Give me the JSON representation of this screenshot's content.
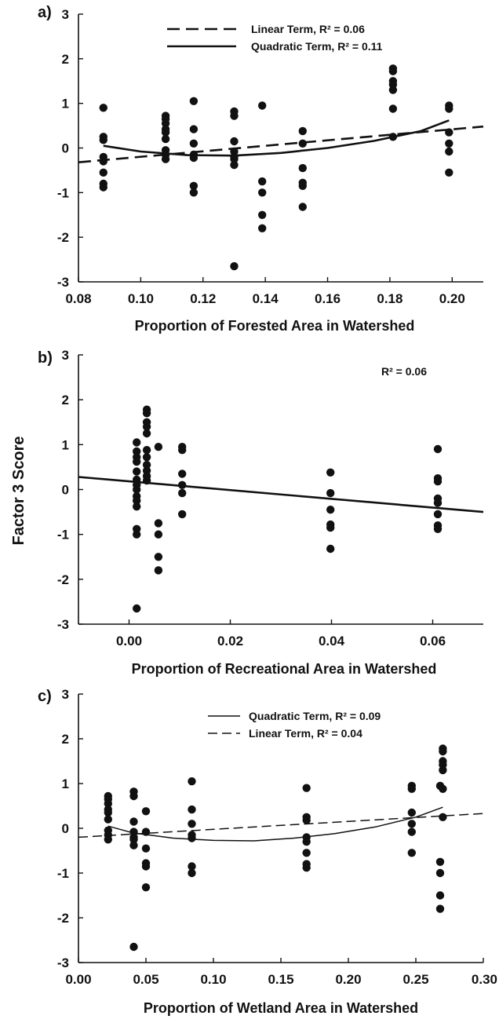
{
  "figure": {
    "ylabel": "Factor 3 Score"
  },
  "chart_data": [
    {
      "type": "scatter",
      "panel_label": "a)",
      "xlabel": "Proportion of Forested Area in Watershed",
      "xlim": [
        0.08,
        0.21
      ],
      "ylim": [
        -3,
        3
      ],
      "xticks": [
        "0.08",
        "0.10",
        "0.12",
        "0.14",
        "0.16",
        "0.18",
        "0.20"
      ],
      "yticks": [
        "-3",
        "-2",
        "-1",
        "0",
        "1",
        "2",
        "3"
      ],
      "legend": [
        {
          "label": "Linear Term, R² = 0.06",
          "style": "dashed"
        },
        {
          "label": "Quadratic Term, R² = 0.11",
          "style": "solid"
        }
      ],
      "annotation": "",
      "groups": [
        {
          "x": 0.088,
          "y": [
            0.9,
            0.25,
            0.18,
            -0.2,
            -0.3,
            -0.55,
            -0.8,
            -0.88
          ]
        },
        {
          "x": 0.108,
          "y": [
            0.72,
            0.65,
            0.55,
            0.42,
            0.35,
            0.2,
            -0.05,
            -0.15,
            -0.25
          ]
        },
        {
          "x": 0.117,
          "y": [
            1.05,
            0.42,
            0.1,
            -0.15,
            -0.22,
            -0.85,
            -1.0
          ]
        },
        {
          "x": 0.13,
          "y": [
            0.82,
            0.72,
            0.15,
            -0.08,
            -0.2,
            -0.25,
            -0.38,
            -2.65
          ]
        },
        {
          "x": 0.139,
          "y": [
            0.95,
            -0.75,
            -1.0,
            -1.5,
            -1.8
          ]
        },
        {
          "x": 0.152,
          "y": [
            0.38,
            0.1,
            -0.45,
            -0.78,
            -0.85,
            -1.32
          ]
        },
        {
          "x": 0.181,
          "y": [
            1.78,
            1.72,
            1.5,
            1.42,
            1.3,
            0.88,
            0.25
          ]
        },
        {
          "x": 0.199,
          "y": [
            0.95,
            0.88,
            0.35,
            0.1,
            -0.08,
            -0.55
          ]
        }
      ],
      "fits": [
        {
          "kind": "linear",
          "style": "dashed",
          "x": [
            0.08,
            0.21
          ],
          "y": [
            -0.32,
            0.48
          ]
        },
        {
          "kind": "quadratic",
          "style": "solid",
          "x": [
            0.088,
            0.1,
            0.115,
            0.13,
            0.145,
            0.16,
            0.175,
            0.19,
            0.199
          ],
          "y": [
            0.05,
            -0.08,
            -0.16,
            -0.17,
            -0.11,
            0.0,
            0.16,
            0.38,
            0.62
          ]
        }
      ]
    },
    {
      "type": "scatter",
      "panel_label": "b)",
      "xlabel": "Proportion of Recreational Area in Watershed",
      "xlim": [
        -0.01,
        0.07
      ],
      "ylim": [
        -3,
        3
      ],
      "xticks": [
        "0.00",
        "0.02",
        "0.04",
        "0.06"
      ],
      "yticks": [
        "-3",
        "-2",
        "-1",
        "0",
        "1",
        "2",
        "3"
      ],
      "legend": [],
      "annotation": "R² = 0.06",
      "groups": [
        {
          "x": 0.0015,
          "y": [
            1.05,
            0.85,
            0.72,
            0.62,
            0.4,
            0.22,
            0.1,
            0.0,
            -0.15,
            -0.25,
            -0.38,
            -0.88,
            -1.0,
            -2.65
          ]
        },
        {
          "x": 0.0035,
          "y": [
            1.78,
            1.7,
            1.5,
            1.4,
            1.25,
            0.88,
            0.72,
            0.55,
            0.42,
            0.3,
            0.2
          ]
        },
        {
          "x": 0.0058,
          "y": [
            0.95,
            -0.75,
            -1.0,
            -1.5,
            -1.8
          ]
        },
        {
          "x": 0.0105,
          "y": [
            0.95,
            0.88,
            0.35,
            0.1,
            -0.08,
            -0.55
          ]
        },
        {
          "x": 0.0398,
          "y": [
            0.38,
            -0.08,
            -0.45,
            -0.78,
            -0.85,
            -1.32
          ]
        },
        {
          "x": 0.061,
          "y": [
            0.9,
            0.25,
            0.18,
            -0.2,
            -0.3,
            -0.55,
            -0.8,
            -0.88
          ]
        }
      ],
      "fits": [
        {
          "kind": "linear",
          "style": "solid",
          "x": [
            -0.01,
            0.07
          ],
          "y": [
            0.28,
            -0.5
          ]
        }
      ]
    },
    {
      "type": "scatter",
      "panel_label": "c)",
      "xlabel": "Proportion of Wetland Area in Watershed",
      "xlim": [
        0.0,
        0.3
      ],
      "ylim": [
        -3,
        3
      ],
      "xticks": [
        "0.00",
        "0.05",
        "0.10",
        "0.15",
        "0.20",
        "0.25",
        "0.30"
      ],
      "yticks": [
        "-3",
        "-2",
        "-1",
        "0",
        "1",
        "2",
        "3"
      ],
      "legend": [
        {
          "label": "Quadratic Term, R² = 0.09",
          "style": "solid"
        },
        {
          "label": "Linear Term, R² = 0.04",
          "style": "dashed"
        }
      ],
      "annotation": "",
      "groups": [
        {
          "x": 0.022,
          "y": [
            0.72,
            0.65,
            0.55,
            0.42,
            0.35,
            0.2,
            -0.05,
            -0.15,
            -0.25
          ]
        },
        {
          "x": 0.041,
          "y": [
            0.82,
            0.72,
            0.15,
            -0.08,
            -0.2,
            -0.25,
            -0.38,
            -2.65
          ]
        },
        {
          "x": 0.05,
          "y": [
            0.38,
            -0.08,
            -0.45,
            -0.78,
            -0.85,
            -1.32
          ]
        },
        {
          "x": 0.084,
          "y": [
            1.05,
            0.42,
            0.1,
            -0.15,
            -0.22,
            -0.85,
            -1.0
          ]
        },
        {
          "x": 0.169,
          "y": [
            0.9,
            0.25,
            0.18,
            -0.2,
            -0.3,
            -0.55,
            -0.8,
            -0.88
          ]
        },
        {
          "x": 0.247,
          "y": [
            0.95,
            0.88,
            0.35,
            0.1,
            -0.08,
            -0.55
          ]
        },
        {
          "x": 0.268,
          "y": [
            0.95,
            -0.75,
            -1.0,
            -1.5,
            -1.8
          ]
        },
        {
          "x": 0.27,
          "y": [
            1.78,
            1.72,
            1.5,
            1.42,
            1.3,
            0.88,
            0.25
          ]
        }
      ],
      "fits": [
        {
          "kind": "quadratic",
          "style": "solid",
          "x": [
            0.022,
            0.04,
            0.07,
            0.1,
            0.13,
            0.16,
            0.19,
            0.22,
            0.25,
            0.27
          ],
          "y": [
            0.05,
            -0.1,
            -0.22,
            -0.27,
            -0.28,
            -0.22,
            -0.12,
            0.03,
            0.25,
            0.47
          ]
        },
        {
          "kind": "linear",
          "style": "dashed",
          "x": [
            0.0,
            0.3
          ],
          "y": [
            -0.2,
            0.33
          ]
        }
      ]
    }
  ]
}
